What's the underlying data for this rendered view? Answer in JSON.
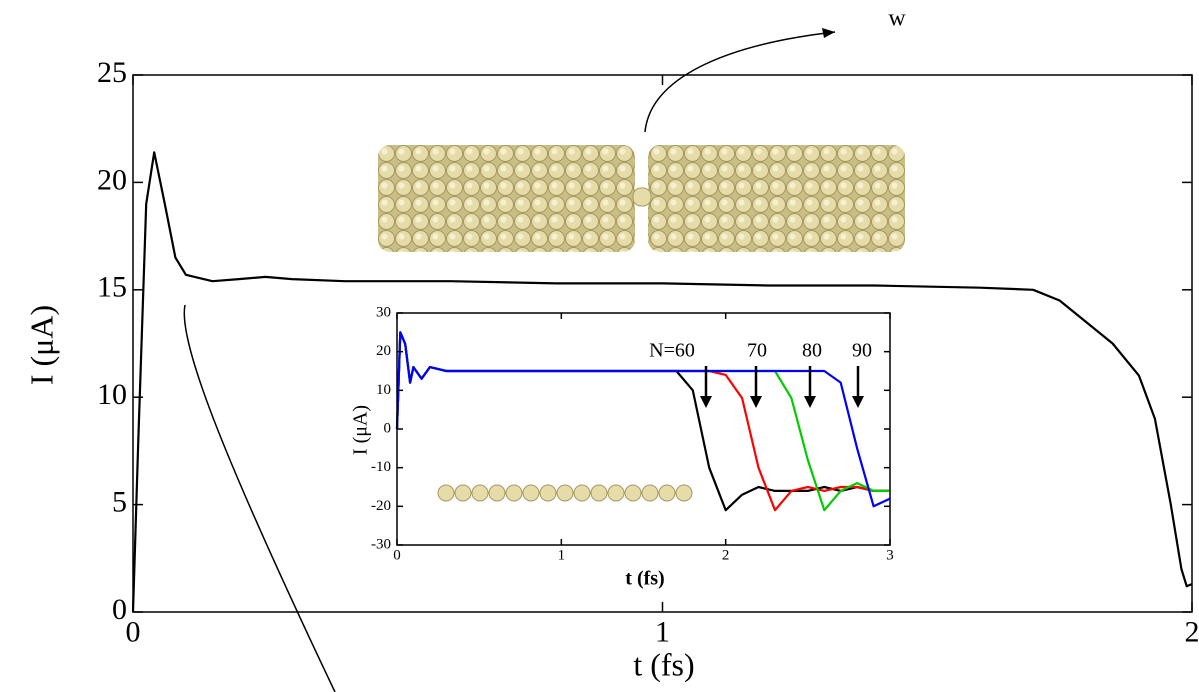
{
  "chart_data": [
    {
      "type": "line",
      "x_label": "t (fs)",
      "y_label": "I (μA)",
      "annotations": [
        "w"
      ],
      "xlim": [
        0,
        2
      ],
      "xticks": [
        0,
        1,
        2
      ],
      "ylim": [
        0,
        25
      ],
      "yticks": [
        0,
        5,
        10,
        15,
        20,
        25
      ],
      "x": [
        0,
        0.01,
        0.025,
        0.04,
        0.06,
        0.08,
        0.1,
        0.15,
        0.2,
        0.25,
        0.3,
        0.4,
        0.6,
        0.8,
        1.0,
        1.2,
        1.4,
        1.6,
        1.7,
        1.75,
        1.8,
        1.85,
        1.9,
        1.93,
        1.96,
        1.98,
        1.99,
        2.0
      ],
      "series": [
        {
          "color": "#000000",
          "values": [
            0,
            8,
            19,
            21.4,
            19,
            16.5,
            15.7,
            15.4,
            15.5,
            15.6,
            15.5,
            15.4,
            15.4,
            15.3,
            15.3,
            15.2,
            15.2,
            15.1,
            15.0,
            14.5,
            13.5,
            12.5,
            11,
            9,
            5,
            2,
            1.2,
            1.3
          ]
        }
      ]
    },
    {
      "type": "line",
      "x_label": "t (fs)",
      "y_label": "I (μA)",
      "xlim": [
        0,
        3
      ],
      "xticks": [
        0,
        1,
        2,
        3
      ],
      "ylim": [
        -30,
        30
      ],
      "yticks": [
        -30,
        -20,
        -10,
        0,
        10,
        20,
        30
      ],
      "x": [
        0,
        0.02,
        0.05,
        0.08,
        0.1,
        0.15,
        0.2,
        0.3,
        0.5,
        1.0,
        1.5,
        1.7,
        1.8,
        1.9,
        2.0,
        2.1,
        2.2,
        2.3,
        2.4,
        2.5,
        2.6,
        2.7,
        2.8,
        2.9,
        3.0
      ],
      "series": [
        {
          "name": "N=60",
          "color": "#000000",
          "values": [
            0,
            25,
            22,
            12,
            16,
            13,
            16,
            15,
            15,
            15,
            15,
            15,
            10,
            -10,
            -21,
            -17,
            -15,
            -16,
            -16,
            -16,
            -15,
            -16,
            -15,
            -16,
            -16
          ]
        },
        {
          "name": "70",
          "color": "#ff0000",
          "values": [
            0,
            25,
            22,
            12,
            16,
            13,
            16,
            15,
            15,
            15,
            15,
            15,
            15,
            15,
            14,
            8,
            -10,
            -21,
            -16,
            -15,
            -16,
            -15,
            -15,
            -16,
            -16
          ]
        },
        {
          "name": "80",
          "color": "#00cc00",
          "values": [
            0,
            25,
            22,
            12,
            16,
            13,
            16,
            15,
            15,
            15,
            15,
            15,
            15,
            15,
            15,
            15,
            15,
            15,
            8,
            -8,
            -21,
            -16,
            -14,
            -16,
            -16
          ]
        },
        {
          "name": "90",
          "color": "#0000ff",
          "values": [
            0,
            25,
            22,
            12,
            16,
            13,
            16,
            15,
            15,
            15,
            15,
            15,
            15,
            15,
            15,
            15,
            15,
            15,
            15,
            15,
            15,
            12,
            -5,
            -20,
            -18
          ]
        }
      ]
    }
  ]
}
